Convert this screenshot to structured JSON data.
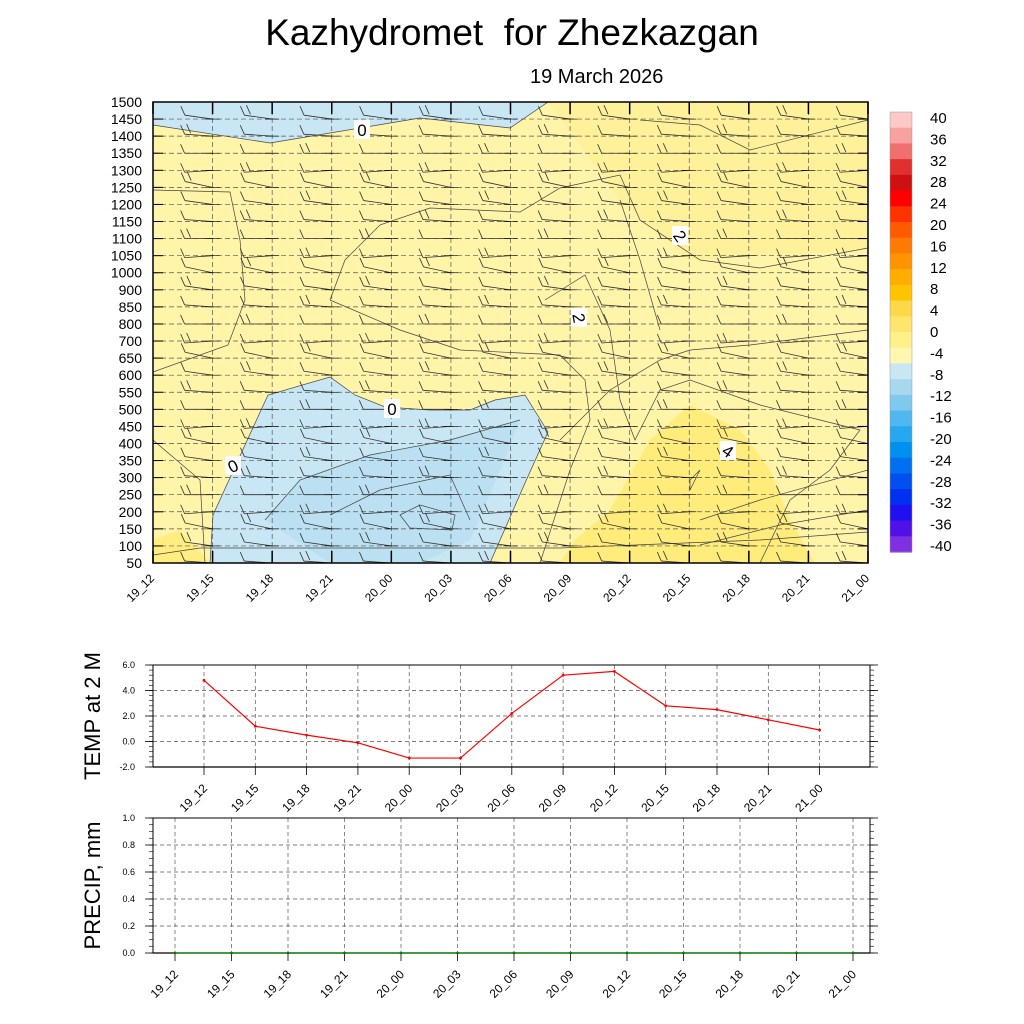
{
  "header": {
    "title": "Kazhydromet  for Zhezkazgan",
    "date": "19 March 2026"
  },
  "chart_data": [
    {
      "type": "heatmap",
      "name": "cross-section",
      "y_levels": [
        "1500",
        "1450",
        "1400",
        "1350",
        "1300",
        "1250",
        "1200",
        "1150",
        "1100",
        "1050",
        "1000",
        "900",
        "850",
        "800",
        "700",
        "650",
        "600",
        "550",
        "500",
        "450",
        "400",
        "350",
        "300",
        "250",
        "200",
        "150",
        "100",
        "50"
      ],
      "x_labels": [
        "19_12",
        "19_15",
        "19_18",
        "19_21",
        "20_00",
        "20_03",
        "20_06",
        "20_09",
        "20_12",
        "20_15",
        "20_18",
        "20_21",
        "21_00"
      ],
      "contour_labels": [
        "0",
        "0",
        "0",
        "2",
        "2",
        "4"
      ],
      "colorbar": {
        "labels": [
          "40",
          "36",
          "32",
          "28",
          "24",
          "20",
          "16",
          "12",
          "8",
          "4",
          "0",
          "-4",
          "-8",
          "-12",
          "-16",
          "-20",
          "-24",
          "-28",
          "-32",
          "-36",
          "-40"
        ],
        "warm_colors": [
          "#fdc8c8",
          "#f9a0a0",
          "#f07070",
          "#e03030",
          "#d01010",
          "#ff0000",
          "#ff3300",
          "#ff5a00",
          "#ff7a00",
          "#ff9400",
          "#ffae00",
          "#ffc400",
          "#ffd84a",
          "#ffe46e",
          "#fff08c",
          "#fff7b0"
        ],
        "cold_colors": [
          "#c8e6f4",
          "#a8d8f0",
          "#7fc8ee",
          "#50b8ee",
          "#25a8f0",
          "#0090f0",
          "#0070f0",
          "#0050f0",
          "#0030f0",
          "#2010f0",
          "#5010e8",
          "#8030e0"
        ]
      },
      "regions": {
        "cold_color": "#c8e6f4",
        "cold_dark_color": "#b0dcf0",
        "warm_color": "#fff4a8",
        "warm_mid_color": "#ffee8c",
        "warm_hot_color": "#ffe866"
      }
    },
    {
      "type": "line",
      "name": "temperature",
      "ylabel": "TEMP at 2 M",
      "ylim": [
        -2.0,
        6.0
      ],
      "y_ticks": [
        "6.0",
        "4.0",
        "2.0",
        "0.0",
        "-2.0"
      ],
      "categories": [
        "19_12",
        "19_15",
        "19_18",
        "19_21",
        "20_00",
        "20_03",
        "20_06",
        "20_09",
        "20_12",
        "20_15",
        "20_18",
        "20_21",
        "21_00"
      ],
      "values": [
        4.8,
        1.2,
        0.5,
        -0.1,
        -1.3,
        -1.3,
        2.2,
        5.2,
        5.5,
        2.8,
        2.5,
        1.7,
        0.9
      ],
      "line_color": "#ff0000"
    },
    {
      "type": "line",
      "name": "precipitation",
      "ylabel": "PRECIP, mm",
      "ylim": [
        0.0,
        1.0
      ],
      "y_ticks": [
        "1.0",
        "0.8",
        "0.6",
        "0.4",
        "0.2",
        "0.0"
      ],
      "categories": [
        "19_12",
        "19_15",
        "19_18",
        "19_21",
        "20_00",
        "20_03",
        "20_06",
        "20_09",
        "20_12",
        "20_15",
        "20_18",
        "20_21",
        "21_00"
      ],
      "values": [
        0,
        0,
        0,
        0,
        0,
        0,
        0,
        0,
        0,
        0,
        0,
        0,
        0
      ],
      "line_color": "#008000"
    }
  ]
}
